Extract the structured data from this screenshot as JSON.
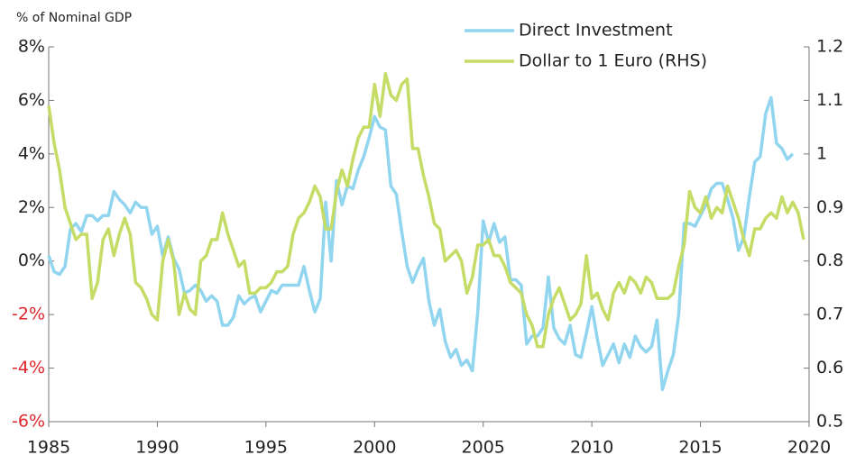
{
  "chart_data": {
    "type": "line",
    "title": "% of Nominal GDP",
    "xlim": [
      1985,
      2020
    ],
    "xticks": [
      1985,
      1990,
      1995,
      2000,
      2005,
      2010,
      2015,
      2020
    ],
    "ylim": [
      -6,
      8
    ],
    "yticks": [
      {
        "value": -6,
        "label": "-6%"
      },
      {
        "value": -4,
        "label": "-4%"
      },
      {
        "value": -2,
        "label": "-2%"
      },
      {
        "value": 0,
        "label": "0%"
      },
      {
        "value": 2,
        "label": "2%"
      },
      {
        "value": 4,
        "label": "4%"
      },
      {
        "value": 6,
        "label": "6%"
      },
      {
        "value": 8,
        "label": "8%"
      }
    ],
    "y2lim": [
      0.5,
      1.2
    ],
    "y2ticks": [
      0.5,
      0.6,
      0.7,
      0.8,
      0.9,
      1,
      1.1,
      1.2
    ],
    "negative_label_color": "#e0262b",
    "legend": "top",
    "x": [
      1985,
      1985.25,
      1985.5,
      1985.75,
      1986,
      1986.25,
      1986.5,
      1986.75,
      1987,
      1987.25,
      1987.5,
      1987.75,
      1988,
      1988.25,
      1988.5,
      1988.75,
      1989,
      1989.25,
      1989.5,
      1989.75,
      1990,
      1990.25,
      1990.5,
      1990.75,
      1991,
      1991.25,
      1991.5,
      1991.75,
      1992,
      1992.25,
      1992.5,
      1992.75,
      1993,
      1993.25,
      1993.5,
      1993.75,
      1994,
      1994.25,
      1994.5,
      1994.75,
      1995,
      1995.25,
      1995.5,
      1995.75,
      1996,
      1996.25,
      1996.5,
      1996.75,
      1997,
      1997.25,
      1997.5,
      1997.75,
      1998,
      1998.25,
      1998.5,
      1998.75,
      1999,
      1999.25,
      1999.5,
      1999.75,
      2000,
      2000.25,
      2000.5,
      2000.75,
      2001,
      2001.25,
      2001.5,
      2001.75,
      2002,
      2002.25,
      2002.5,
      2002.75,
      2003,
      2003.25,
      2003.5,
      2003.75,
      2004,
      2004.25,
      2004.5,
      2004.75,
      2005,
      2005.25,
      2005.5,
      2005.75,
      2006,
      2006.25,
      2006.5,
      2006.75,
      2007,
      2007.25,
      2007.5,
      2007.75,
      2008,
      2008.25,
      2008.5,
      2008.75,
      2009,
      2009.25,
      2009.5,
      2009.75,
      2010,
      2010.25,
      2010.5,
      2010.75,
      2011,
      2011.25,
      2011.5,
      2011.75,
      2012,
      2012.25,
      2012.5,
      2012.75,
      2013,
      2013.25,
      2013.5,
      2013.75,
      2014,
      2014.25,
      2014.5,
      2014.75,
      2015,
      2015.25,
      2015.5,
      2015.75,
      2016,
      2016.25,
      2016.5,
      2016.75,
      2017,
      2017.25,
      2017.5,
      2017.75,
      2018,
      2018.25,
      2018.5,
      2018.75,
      2019,
      2019.25,
      2019.5,
      2019.75
    ],
    "series": [
      {
        "name": "Direct Investment",
        "color": "#92d5ef",
        "values": [
          0.2,
          -0.4,
          -0.5,
          -0.2,
          1.2,
          1.4,
          1.1,
          1.7,
          1.7,
          1.5,
          1.7,
          1.7,
          2.6,
          2.3,
          2.1,
          1.8,
          2.2,
          2.0,
          2.0,
          1.0,
          1.3,
          0.2,
          0.9,
          0.1,
          -0.3,
          -1.2,
          -1.1,
          -0.9,
          -1.1,
          -1.5,
          -1.3,
          -1.5,
          -2.4,
          -2.4,
          -2.1,
          -1.3,
          -1.6,
          -1.4,
          -1.3,
          -1.9,
          -1.5,
          -1.1,
          -1.2,
          -0.9,
          -0.9,
          -0.9,
          -0.9,
          -0.2,
          -1.1,
          -1.9,
          -1.4,
          2.2,
          0.0,
          3.0,
          2.1,
          2.8,
          2.7,
          3.4,
          3.9,
          4.6,
          5.4,
          5.0,
          4.9,
          2.8,
          2.5,
          1.1,
          -0.2,
          -0.8,
          -0.3,
          0.1,
          -1.5,
          -2.4,
          -1.8,
          -3.0,
          -3.6,
          -3.3,
          -3.9,
          -3.7,
          -4.1,
          -1.9,
          1.5,
          0.7,
          1.4,
          0.7,
          0.9,
          -0.7,
          -0.7,
          -0.9,
          -3.1,
          -2.8,
          -2.8,
          -2.5,
          -0.6,
          -2.5,
          -2.9,
          -3.1,
          -2.4,
          -3.5,
          -3.6,
          -2.7,
          -1.7,
          -2.9,
          -3.9,
          -3.5,
          -3.1,
          -3.8,
          -3.1,
          -3.6,
          -2.8,
          -3.2,
          -3.4,
          -3.2,
          -2.2,
          -4.8,
          -4.1,
          -3.5,
          -2.0,
          1.4,
          1.4,
          1.3,
          1.7,
          2.1,
          2.7,
          2.9,
          2.9,
          2.3,
          1.6,
          0.4,
          0.9,
          2.4,
          3.7,
          3.9,
          5.5,
          6.1,
          4.4,
          4.2,
          3.8,
          4.0,
          null,
          null
        ]
      },
      {
        "name": "Dollar to 1 Euro (RHS)",
        "color": "#c5dc66",
        "axis": "y2",
        "values": [
          1.09,
          1.02,
          0.97,
          0.9,
          0.87,
          0.84,
          0.85,
          0.85,
          0.73,
          0.76,
          0.84,
          0.86,
          0.81,
          0.85,
          0.88,
          0.85,
          0.76,
          0.75,
          0.73,
          0.7,
          0.69,
          0.8,
          0.84,
          0.8,
          0.7,
          0.74,
          0.71,
          0.7,
          0.8,
          0.81,
          0.84,
          0.84,
          0.89,
          0.85,
          0.82,
          0.79,
          0.8,
          0.74,
          0.74,
          0.75,
          0.75,
          0.76,
          0.78,
          0.78,
          0.79,
          0.85,
          0.88,
          0.89,
          0.91,
          0.94,
          0.92,
          0.86,
          0.86,
          0.93,
          0.97,
          0.94,
          0.99,
          1.03,
          1.05,
          1.05,
          1.13,
          1.07,
          1.15,
          1.11,
          1.1,
          1.13,
          1.14,
          1.01,
          1.01,
          0.96,
          0.92,
          0.87,
          0.86,
          0.8,
          0.81,
          0.82,
          0.8,
          0.74,
          0.77,
          0.83,
          0.83,
          0.84,
          0.81,
          0.81,
          0.79,
          0.76,
          0.75,
          0.74,
          0.7,
          0.68,
          0.64,
          0.64,
          0.7,
          0.73,
          0.75,
          0.72,
          0.69,
          0.7,
          0.72,
          0.81,
          0.73,
          0.74,
          0.71,
          0.69,
          0.74,
          0.76,
          0.74,
          0.77,
          0.76,
          0.74,
          0.77,
          0.76,
          0.73,
          0.73,
          0.73,
          0.74,
          0.79,
          0.83,
          0.93,
          0.9,
          0.89,
          0.92,
          0.88,
          0.9,
          0.89,
          0.94,
          0.91,
          0.88,
          0.84,
          0.81,
          0.86,
          0.86,
          0.88,
          0.89,
          0.88,
          0.92,
          0.89,
          0.91,
          0.89,
          0.84
        ]
      }
    ]
  }
}
